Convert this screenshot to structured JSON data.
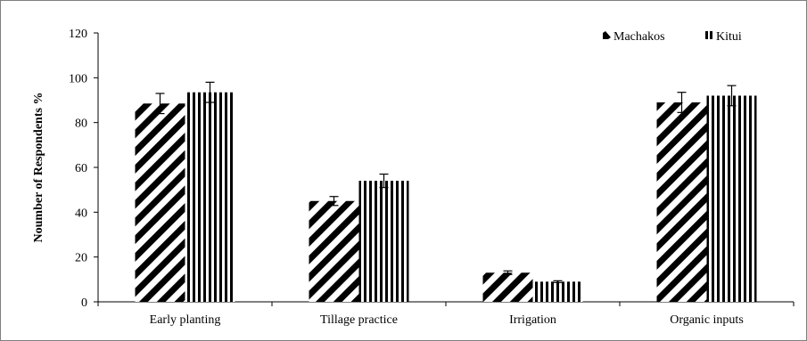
{
  "chart_data": {
    "type": "bar",
    "title": "",
    "xlabel": "",
    "ylabel": "Noumber of Respondents %",
    "ylim": [
      0,
      120
    ],
    "yticks": [
      0,
      20,
      40,
      60,
      80,
      100,
      120
    ],
    "categories": [
      "Early planting",
      "Tillage practice",
      "Irrigation",
      "Organic inputs"
    ],
    "series": [
      {
        "name": "Machakos",
        "pattern": "diagonal-hatch",
        "values": [
          88.5,
          45,
          13,
          89
        ],
        "errors": [
          4.5,
          2,
          0.8,
          4.5
        ]
      },
      {
        "name": "Kitui",
        "pattern": "vertical-hatch",
        "values": [
          93.5,
          54,
          9,
          92
        ],
        "errors": [
          4.5,
          3,
          0.4,
          4.5
        ]
      }
    ],
    "grid": false,
    "legend": "top-right",
    "colors": {
      "bar_fill": "#000000",
      "background": "#ffffff",
      "axis": "#000000"
    }
  }
}
